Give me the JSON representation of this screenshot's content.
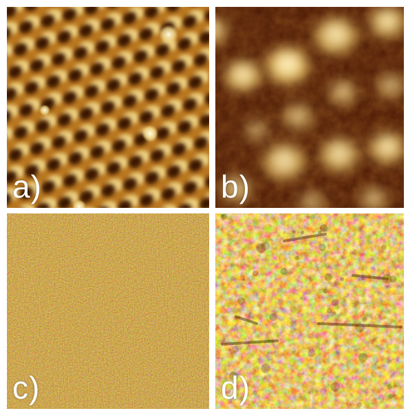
{
  "panels": [
    {
      "id": "a",
      "label": "a)",
      "description": "hexagonal-lattice"
    },
    {
      "id": "b",
      "label": "b)",
      "description": "bright-blob-lattice"
    },
    {
      "id": "c",
      "label": "c)",
      "description": "fine-noise"
    },
    {
      "id": "d",
      "label": "d)",
      "description": "coarse-noise"
    }
  ],
  "colors": {
    "background": "#ffffff",
    "dark": "#3a1302",
    "mid": "#a05a14",
    "bright": "#f2df9a",
    "highlight": "#fff6d6",
    "label": "#ffffff"
  }
}
